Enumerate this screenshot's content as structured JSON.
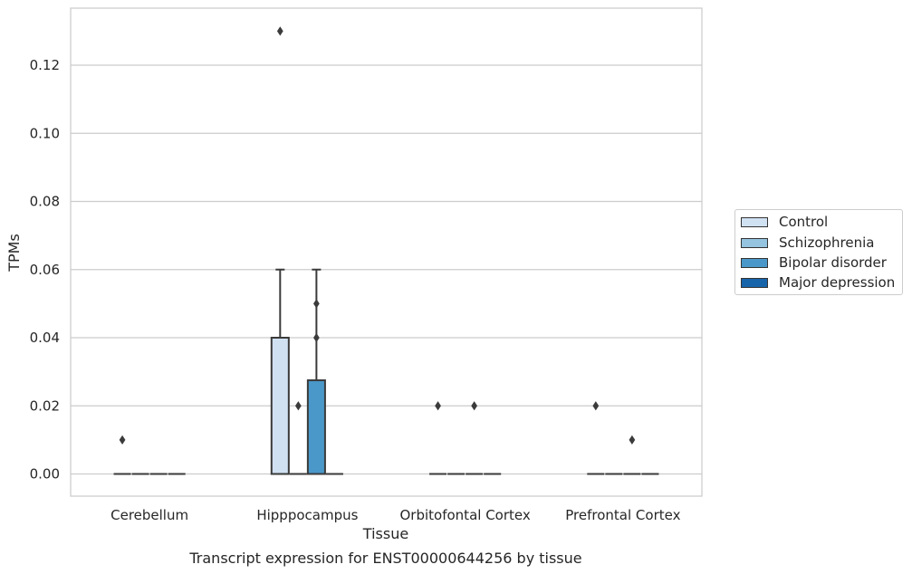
{
  "chart_data": {
    "type": "box",
    "title": "Transcript expression for ENST00000644256 by tissue",
    "xlabel": "Tissue",
    "ylabel": "TPMs",
    "ylim": [
      -0.0065,
      0.1365
    ],
    "yticks": [
      0.0,
      0.02,
      0.04,
      0.06,
      0.08,
      0.1,
      0.12
    ],
    "ytick_labels": [
      "0.00",
      "0.02",
      "0.04",
      "0.06",
      "0.08",
      "0.10",
      "0.12"
    ],
    "categories": [
      "Cerebellum",
      "Hipppocampus",
      "Orbitofontal Cortex",
      "Prefrontal Cortex"
    ],
    "grid": "horizontal",
    "legend_position": "right",
    "series": [
      {
        "name": "Control",
        "color": "#d0e1f2",
        "boxes": [
          {
            "q1": 0,
            "median": 0,
            "q3": 0,
            "whisker_low": 0,
            "whisker_high": 0,
            "outliers": [
              0.01
            ]
          },
          {
            "q1": 0,
            "median": 0,
            "q3": 0.04,
            "whisker_low": 0,
            "whisker_high": 0.06,
            "outliers": [
              0.13
            ]
          },
          {
            "q1": 0,
            "median": 0,
            "q3": 0,
            "whisker_low": 0,
            "whisker_high": 0,
            "outliers": [
              0.02
            ]
          },
          {
            "q1": 0,
            "median": 0,
            "q3": 0,
            "whisker_low": 0,
            "whisker_high": 0,
            "outliers": [
              0.02
            ]
          }
        ]
      },
      {
        "name": "Schizophrenia",
        "color": "#94c4df",
        "boxes": [
          {
            "q1": 0,
            "median": 0,
            "q3": 0,
            "whisker_low": 0,
            "whisker_high": 0,
            "outliers": []
          },
          {
            "q1": 0,
            "median": 0,
            "q3": 0,
            "whisker_low": 0,
            "whisker_high": 0,
            "outliers": [
              0.02
            ]
          },
          {
            "q1": 0,
            "median": 0,
            "q3": 0,
            "whisker_low": 0,
            "whisker_high": 0,
            "outliers": []
          },
          {
            "q1": 0,
            "median": 0,
            "q3": 0,
            "whisker_low": 0,
            "whisker_high": 0,
            "outliers": []
          }
        ]
      },
      {
        "name": "Bipolar disorder",
        "color": "#4a98c9",
        "boxes": [
          {
            "q1": 0,
            "median": 0,
            "q3": 0,
            "whisker_low": 0,
            "whisker_high": 0,
            "outliers": []
          },
          {
            "q1": 0,
            "median": 0,
            "q3": 0.0275,
            "whisker_low": 0,
            "whisker_high": 0.06,
            "outliers": [
              0.04,
              0.05
            ]
          },
          {
            "q1": 0,
            "median": 0,
            "q3": 0,
            "whisker_low": 0,
            "whisker_high": 0,
            "outliers": [
              0.02
            ]
          },
          {
            "q1": 0,
            "median": 0,
            "q3": 0,
            "whisker_low": 0,
            "whisker_high": 0,
            "outliers": [
              0.01
            ]
          }
        ]
      },
      {
        "name": "Major depression",
        "color": "#1764ab",
        "boxes": [
          {
            "q1": 0,
            "median": 0,
            "q3": 0,
            "whisker_low": 0,
            "whisker_high": 0,
            "outliers": []
          },
          {
            "q1": 0,
            "median": 0,
            "q3": 0,
            "whisker_low": 0,
            "whisker_high": 0,
            "outliers": []
          },
          {
            "q1": 0,
            "median": 0,
            "q3": 0,
            "whisker_low": 0,
            "whisker_high": 0,
            "outliers": []
          },
          {
            "q1": 0,
            "median": 0,
            "q3": 0,
            "whisker_low": 0,
            "whisker_high": 0,
            "outliers": []
          }
        ]
      }
    ]
  }
}
